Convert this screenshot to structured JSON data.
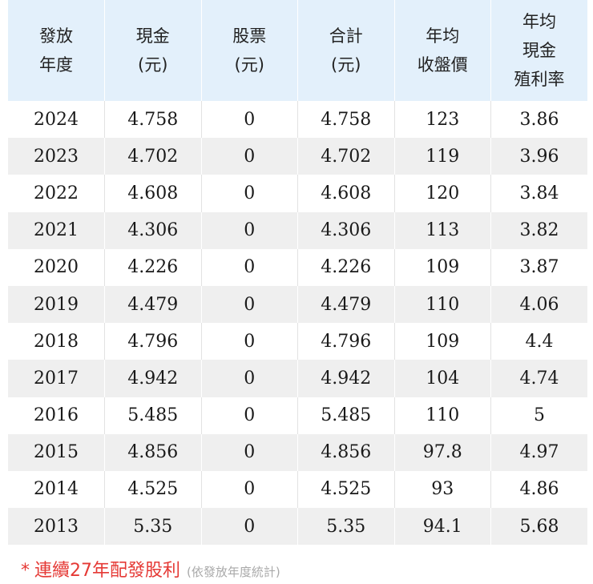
{
  "headers": [
    [
      "發放",
      "年度"
    ],
    [
      "現金",
      "(元)"
    ],
    [
      "股票",
      "(元)"
    ],
    [
      "合計",
      "(元)"
    ],
    [
      "年均",
      "收盤價"
    ],
    [
      "年均",
      "現金",
      "殖利率"
    ]
  ],
  "rows": [
    [
      "2024",
      "4.758",
      "0",
      "4.758",
      "123",
      "3.86"
    ],
    [
      "2023",
      "4.702",
      "0",
      "4.702",
      "119",
      "3.96"
    ],
    [
      "2022",
      "4.608",
      "0",
      "4.608",
      "120",
      "3.84"
    ],
    [
      "2021",
      "4.306",
      "0",
      "4.306",
      "113",
      "3.82"
    ],
    [
      "2020",
      "4.226",
      "0",
      "4.226",
      "109",
      "3.87"
    ],
    [
      "2019",
      "4.479",
      "0",
      "4.479",
      "110",
      "4.06"
    ],
    [
      "2018",
      "4.796",
      "0",
      "4.796",
      "109",
      "4.4"
    ],
    [
      "2017",
      "4.942",
      "0",
      "4.942",
      "104",
      "4.74"
    ],
    [
      "2016",
      "5.485",
      "0",
      "5.485",
      "110",
      "5"
    ],
    [
      "2015",
      "4.856",
      "0",
      "4.856",
      "97.8",
      "4.97"
    ],
    [
      "2014",
      "4.525",
      "0",
      "4.525",
      "93",
      "4.86"
    ],
    [
      "2013",
      "5.35",
      "0",
      "5.35",
      "94.1",
      "5.68"
    ]
  ],
  "footnote": {
    "star": "*",
    "text": "連續27年配發股利",
    "note": "(依發放年度統計)"
  },
  "colors": {
    "header_bg": "#e3f0fb",
    "stripe_bg": "#efefef",
    "footnote_red": "#e53935",
    "note_gray": "#a9a9a9"
  }
}
